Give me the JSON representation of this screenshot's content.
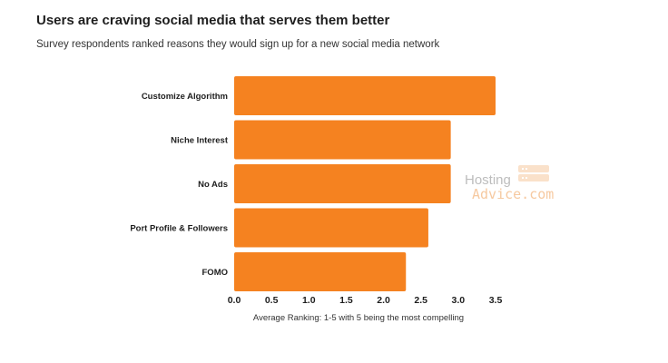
{
  "chart_data": {
    "type": "bar",
    "orientation": "horizontal",
    "title": "Users are craving social media that serves them better",
    "subtitle": "Survey respondents ranked reasons they would sign up for a new social media network",
    "categories": [
      "Customize Algorithm",
      "Niche Interest",
      "No Ads",
      "Port Profile & Followers",
      "FOMO"
    ],
    "values": [
      3.5,
      2.9,
      2.9,
      2.6,
      2.3
    ],
    "xlabel": "Average Ranking: 1-5 with 5 being the most compelling",
    "ylabel": "",
    "xlim": [
      0,
      3.5
    ],
    "x_ticks": [
      "0.0",
      "0.5",
      "1.0",
      "1.5",
      "2.0",
      "2.5",
      "3.0",
      "3.5"
    ],
    "grid": false,
    "bar_color": "#f58220"
  },
  "watermark": {
    "line1": "Hosting",
    "line2": "Advice.com",
    "icon": "server-icon"
  }
}
